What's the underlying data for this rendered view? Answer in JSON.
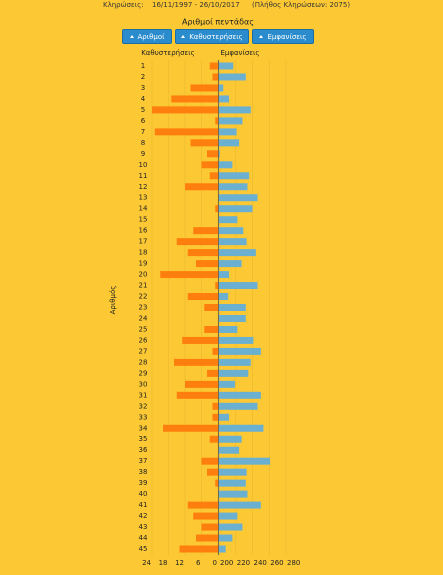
{
  "header": {
    "label": "Κληρώσεις:",
    "range": "16/11/1997 - 26/10/2017",
    "count": "(Πλήθος Κληρώσεων: 2075)"
  },
  "controls": {
    "buttons": [
      "Αριθμοί",
      "Καθυστερήσεις",
      "Εμφανίσεις"
    ]
  },
  "chart_data": {
    "type": "butterfly",
    "title": "Αριθμοί πεντάδας",
    "y_label": "Αριθμός",
    "categories": [
      "1",
      "2",
      "3",
      "4",
      "5",
      "6",
      "7",
      "8",
      "9",
      "10",
      "11",
      "12",
      "13",
      "14",
      "15",
      "16",
      "17",
      "18",
      "19",
      "20",
      "21",
      "22",
      "23",
      "24",
      "25",
      "26",
      "27",
      "28",
      "29",
      "30",
      "31",
      "32",
      "33",
      "34",
      "35",
      "36",
      "37",
      "38",
      "39",
      "40",
      "41",
      "42",
      "43",
      "44",
      "45"
    ],
    "series": [
      {
        "name": "Καθυστερήσεις",
        "color": "#ff7f0e",
        "side": "left",
        "xlim": [
          0,
          24
        ],
        "xticks": [
          24,
          18,
          12,
          6,
          0
        ],
        "values": [
          3,
          2,
          10,
          17,
          24,
          1,
          23,
          10,
          4,
          6,
          3,
          12,
          0,
          1,
          0,
          9,
          15,
          11,
          8,
          21,
          1,
          11,
          5,
          0,
          5,
          13,
          2,
          16,
          4,
          12,
          15,
          2,
          2,
          20,
          3,
          0,
          6,
          4,
          1,
          0,
          11,
          9,
          6,
          8,
          14
        ]
      },
      {
        "name": "Εμφανίσεις",
        "color": "#6bb0d0",
        "side": "right",
        "xlim": [
          200,
          280
        ],
        "xticks": [
          200,
          220,
          240,
          260,
          280
        ],
        "values": [
          217,
          232,
          205,
          212,
          238,
          228,
          221,
          224,
          201,
          216,
          236,
          234,
          246,
          240,
          222,
          229,
          233,
          244,
          227,
          212,
          246,
          211,
          232,
          232,
          222,
          241,
          250,
          238,
          235,
          219,
          250,
          246,
          212,
          253,
          227,
          224,
          261,
          233,
          232,
          234,
          250,
          222,
          228,
          216,
          208
        ]
      }
    ],
    "grid": true
  }
}
